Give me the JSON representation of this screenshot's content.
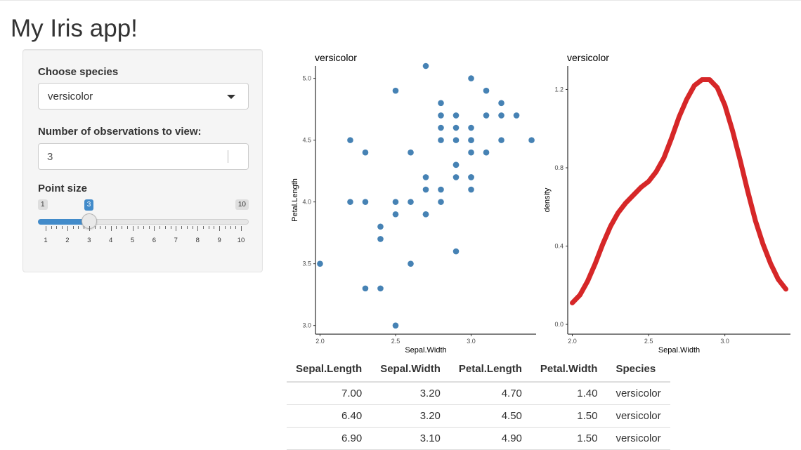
{
  "page": {
    "title": "My Iris app!"
  },
  "sidebar": {
    "species": {
      "label": "Choose species",
      "value": "versicolor"
    },
    "obs": {
      "label": "Number of observations to view:",
      "value": "3"
    },
    "point_size": {
      "label": "Point size",
      "min": 1,
      "max": 10,
      "value": 3,
      "min_label": "1",
      "max_label": "10",
      "value_label": "3"
    }
  },
  "chart_data": [
    {
      "type": "scatter",
      "title": "versicolor",
      "xlabel": "Sepal.Width",
      "ylabel": "Petal.Length",
      "xlim": [
        1.97,
        3.43
      ],
      "ylim": [
        2.93,
        5.1
      ],
      "x_ticks": [
        "2.0",
        "2.5",
        "3.0"
      ],
      "y_ticks": [
        "3.0",
        "3.5",
        "4.0",
        "4.5",
        "5.0"
      ],
      "grid": false,
      "color": "#4682b4",
      "x": [
        3.2,
        3.2,
        3.1,
        2.3,
        2.8,
        2.8,
        3.3,
        2.4,
        2.9,
        2.7,
        2.0,
        3.0,
        2.2,
        2.9,
        2.9,
        3.1,
        3.0,
        2.7,
        2.2,
        2.5,
        3.2,
        2.8,
        2.5,
        2.8,
        2.9,
        3.0,
        2.8,
        3.0,
        2.9,
        2.6,
        2.4,
        2.4,
        2.7,
        2.7,
        3.0,
        3.4,
        3.1,
        2.3,
        3.0,
        2.5,
        2.6,
        3.0,
        2.6,
        2.3,
        2.7,
        3.0,
        2.9,
        2.9,
        2.5,
        2.8
      ],
      "y": [
        4.7,
        4.5,
        4.9,
        4.0,
        4.6,
        4.5,
        4.7,
        3.3,
        4.6,
        3.9,
        3.5,
        4.2,
        4.0,
        4.7,
        3.6,
        4.4,
        4.5,
        4.1,
        4.5,
        3.9,
        4.8,
        4.0,
        4.9,
        4.7,
        4.3,
        4.4,
        4.8,
        5.0,
        4.5,
        3.5,
        3.8,
        3.7,
        3.9,
        5.1,
        4.5,
        4.5,
        4.7,
        4.4,
        4.1,
        4.0,
        4.4,
        4.6,
        4.0,
        3.3,
        4.2,
        4.2,
        4.2,
        4.3,
        3.0,
        4.1
      ]
    },
    {
      "type": "line",
      "title": "versicolor",
      "xlabel": "Sepal.Width",
      "ylabel": "density",
      "xlim": [
        1.97,
        3.43
      ],
      "ylim": [
        -0.05,
        1.32
      ],
      "x_ticks": [
        "2.0",
        "2.5",
        "3.0"
      ],
      "y_ticks": [
        "0.0",
        "0.4",
        "0.8",
        "1.2"
      ],
      "grid": false,
      "color": "#d62728",
      "x": [
        2.0,
        2.05,
        2.1,
        2.15,
        2.2,
        2.25,
        2.3,
        2.35,
        2.4,
        2.45,
        2.5,
        2.55,
        2.6,
        2.65,
        2.7,
        2.75,
        2.8,
        2.85,
        2.9,
        2.95,
        3.0,
        3.05,
        3.1,
        3.15,
        3.2,
        3.25,
        3.3,
        3.35,
        3.4
      ],
      "y": [
        0.11,
        0.15,
        0.22,
        0.31,
        0.41,
        0.5,
        0.57,
        0.62,
        0.66,
        0.7,
        0.73,
        0.78,
        0.85,
        0.95,
        1.06,
        1.15,
        1.22,
        1.25,
        1.25,
        1.21,
        1.12,
        0.99,
        0.84,
        0.68,
        0.53,
        0.41,
        0.31,
        0.23,
        0.18
      ]
    }
  ],
  "table": {
    "columns": [
      "Sepal.Length",
      "Sepal.Width",
      "Petal.Length",
      "Petal.Width",
      "Species"
    ],
    "rows": [
      [
        "7.00",
        "3.20",
        "4.70",
        "1.40",
        "versicolor"
      ],
      [
        "6.40",
        "3.20",
        "4.50",
        "1.50",
        "versicolor"
      ],
      [
        "6.90",
        "3.10",
        "4.90",
        "1.50",
        "versicolor"
      ]
    ]
  }
}
